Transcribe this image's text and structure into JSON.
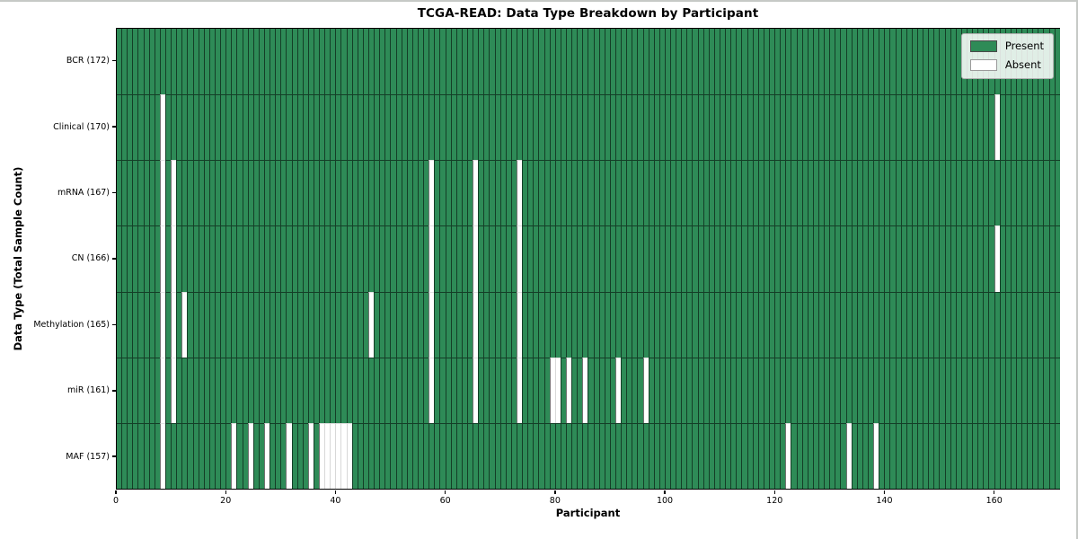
{
  "chart_data": {
    "type": "heatmap",
    "title": "TCGA-READ: Data Type Breakdown by Participant",
    "xlabel": "Participant",
    "ylabel": "Data Type (Total Sample Count)",
    "n_participants": 172,
    "xlim": [
      0,
      172
    ],
    "x_ticks": [
      0,
      20,
      40,
      60,
      80,
      100,
      120,
      140,
      160
    ],
    "grid": "cell-borders",
    "colors": {
      "present": "#2e8b57",
      "absent": "#ffffff"
    },
    "legend": {
      "position": "upper right",
      "entries": [
        {
          "label": "Present",
          "color": "#2e8b57"
        },
        {
          "label": "Absent",
          "color": "#ffffff"
        }
      ]
    },
    "rows": [
      {
        "label": "BCR (172)",
        "data_type": "BCR",
        "total": 172,
        "absent_participants": []
      },
      {
        "label": "Clinical (170)",
        "data_type": "Clinical",
        "total": 170,
        "absent_participants": [
          8,
          160
        ]
      },
      {
        "label": "mRNA (167)",
        "data_type": "mRNA",
        "total": 167,
        "absent_participants": [
          8,
          10,
          57,
          65,
          73
        ]
      },
      {
        "label": "CN (166)",
        "data_type": "CN",
        "total": 166,
        "absent_participants": [
          8,
          10,
          57,
          65,
          73,
          160
        ]
      },
      {
        "label": "Methylation (165)",
        "data_type": "Methylation",
        "total": 165,
        "absent_participants": [
          8,
          10,
          12,
          46,
          57,
          65,
          73
        ]
      },
      {
        "label": "miR (161)",
        "data_type": "miR",
        "total": 161,
        "absent_participants": [
          8,
          10,
          57,
          65,
          73,
          79,
          80,
          82,
          85,
          91,
          96
        ]
      },
      {
        "label": "MAF (157)",
        "data_type": "MAF",
        "total": 157,
        "absent_participants": [
          8,
          21,
          24,
          27,
          31,
          35,
          37,
          38,
          39,
          40,
          41,
          42,
          122,
          133,
          138
        ]
      }
    ]
  }
}
